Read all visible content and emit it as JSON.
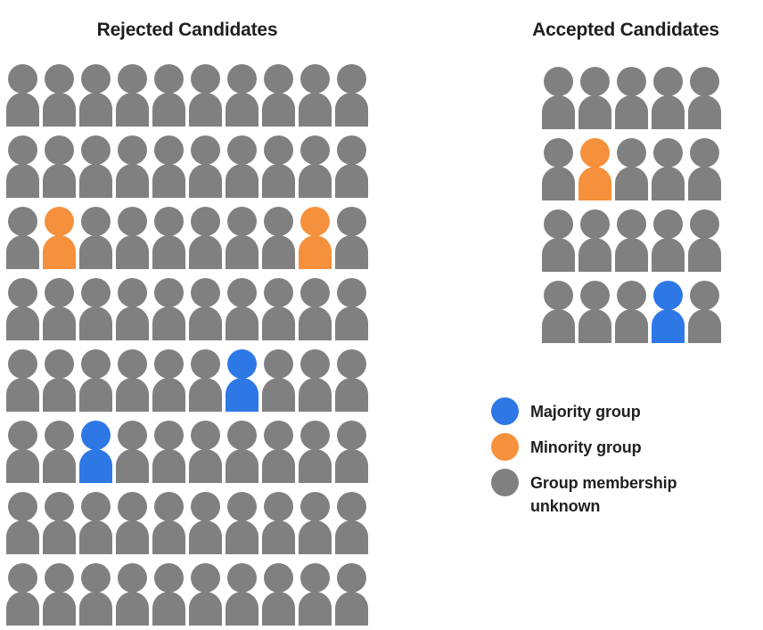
{
  "page": {
    "background": "#ffffff"
  },
  "colors": {
    "majority_blue": "#2e78e6",
    "minority_orange": "#f5913c",
    "unknown_gray": "#808080",
    "text": "#1f1f1f"
  },
  "legend": {
    "items": [
      {
        "label": "Majority group",
        "code": "b"
      },
      {
        "label": "Minority group",
        "code": "o"
      },
      {
        "label": "Group membership unknown",
        "code": "g"
      }
    ]
  },
  "chart_data": [
    {
      "type": "pictograph",
      "title": "Rejected Candidates",
      "icon": "person",
      "columns": 10,
      "row_count": 8,
      "code_map": {
        "g": "group membership unknown",
        "o": "minority group",
        "b": "majority group"
      },
      "rows": [
        [
          "g",
          "g",
          "g",
          "g",
          "g",
          "g",
          "g",
          "g",
          "g",
          "g"
        ],
        [
          "g",
          "g",
          "g",
          "g",
          "g",
          "g",
          "g",
          "g",
          "g",
          "g"
        ],
        [
          "g",
          "o",
          "g",
          "g",
          "g",
          "g",
          "g",
          "g",
          "o",
          "g"
        ],
        [
          "g",
          "g",
          "g",
          "g",
          "g",
          "g",
          "g",
          "g",
          "g",
          "g"
        ],
        [
          "g",
          "g",
          "g",
          "g",
          "g",
          "g",
          "b",
          "g",
          "g",
          "g"
        ],
        [
          "g",
          "g",
          "b",
          "g",
          "g",
          "g",
          "g",
          "g",
          "g",
          "g"
        ],
        [
          "g",
          "g",
          "g",
          "g",
          "g",
          "g",
          "g",
          "g",
          "g",
          "g"
        ],
        [
          "g",
          "g",
          "g",
          "g",
          "g",
          "g",
          "g",
          "g",
          "g",
          "g"
        ]
      ],
      "counts": {
        "total": 80,
        "majority": 2,
        "minority": 2,
        "unknown": 76
      }
    },
    {
      "type": "pictograph",
      "title": "Accepted Candidates",
      "icon": "person",
      "columns": 5,
      "row_count": 4,
      "code_map": {
        "g": "group membership unknown",
        "o": "minority group",
        "b": "majority group"
      },
      "rows": [
        [
          "g",
          "g",
          "g",
          "g",
          "g"
        ],
        [
          "g",
          "o",
          "g",
          "g",
          "g"
        ],
        [
          "g",
          "g",
          "g",
          "g",
          "g"
        ],
        [
          "g",
          "g",
          "g",
          "b",
          "g"
        ]
      ],
      "counts": {
        "total": 20,
        "majority": 1,
        "minority": 1,
        "unknown": 18
      }
    }
  ]
}
